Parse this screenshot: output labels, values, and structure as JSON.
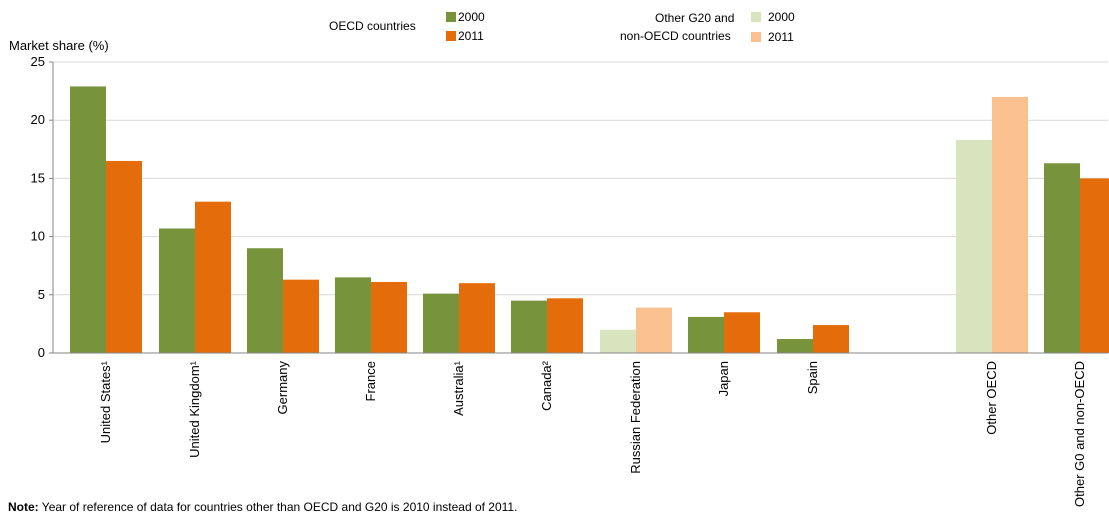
{
  "chart_data": {
    "type": "bar",
    "ylabel": "Market share (%)",
    "ylim": [
      0,
      25
    ],
    "yticks": [
      0,
      5,
      10,
      15,
      20,
      25
    ],
    "grid": true,
    "categories": [
      "United States¹",
      "United Kingdom¹",
      "Germany",
      "France",
      "Australia¹",
      "Canada²",
      "Russian Federation",
      "Japan",
      "Spain",
      "Other OECD",
      "Other G0 and non-OECD"
    ],
    "groups": [
      "OECD",
      "OECD",
      "OECD",
      "OECD",
      "OECD",
      "OECD",
      "G20",
      "OECD",
      "OECD",
      "G20",
      "OECD"
    ],
    "series": [
      {
        "name": "2000",
        "values": [
          22.9,
          10.7,
          9.0,
          6.5,
          5.1,
          4.5,
          2.0,
          3.1,
          1.2,
          18.3,
          16.3
        ]
      },
      {
        "name": "2011",
        "values": [
          16.5,
          13.0,
          6.3,
          6.1,
          6.0,
          4.7,
          3.9,
          3.5,
          2.4,
          22.0,
          15.0
        ]
      }
    ],
    "colors": {
      "oecd_2000": "#77933c",
      "oecd_2011": "#e46c0a",
      "g20_2000": "#d7e4bd",
      "g20_2011": "#fac090",
      "grid": "#d9d9d9",
      "axis": "#868686"
    }
  },
  "legend": {
    "oecd_label": "OECD countries",
    "g20_label_line1": "Other G20 and",
    "g20_label_line2": "non-OECD countries",
    "year_2000": "2000",
    "year_2011": "2011"
  },
  "note": {
    "label": "Note:",
    "text": "Year of reference of data for countries other than OECD and G20 is 2010 instead of 2011."
  }
}
